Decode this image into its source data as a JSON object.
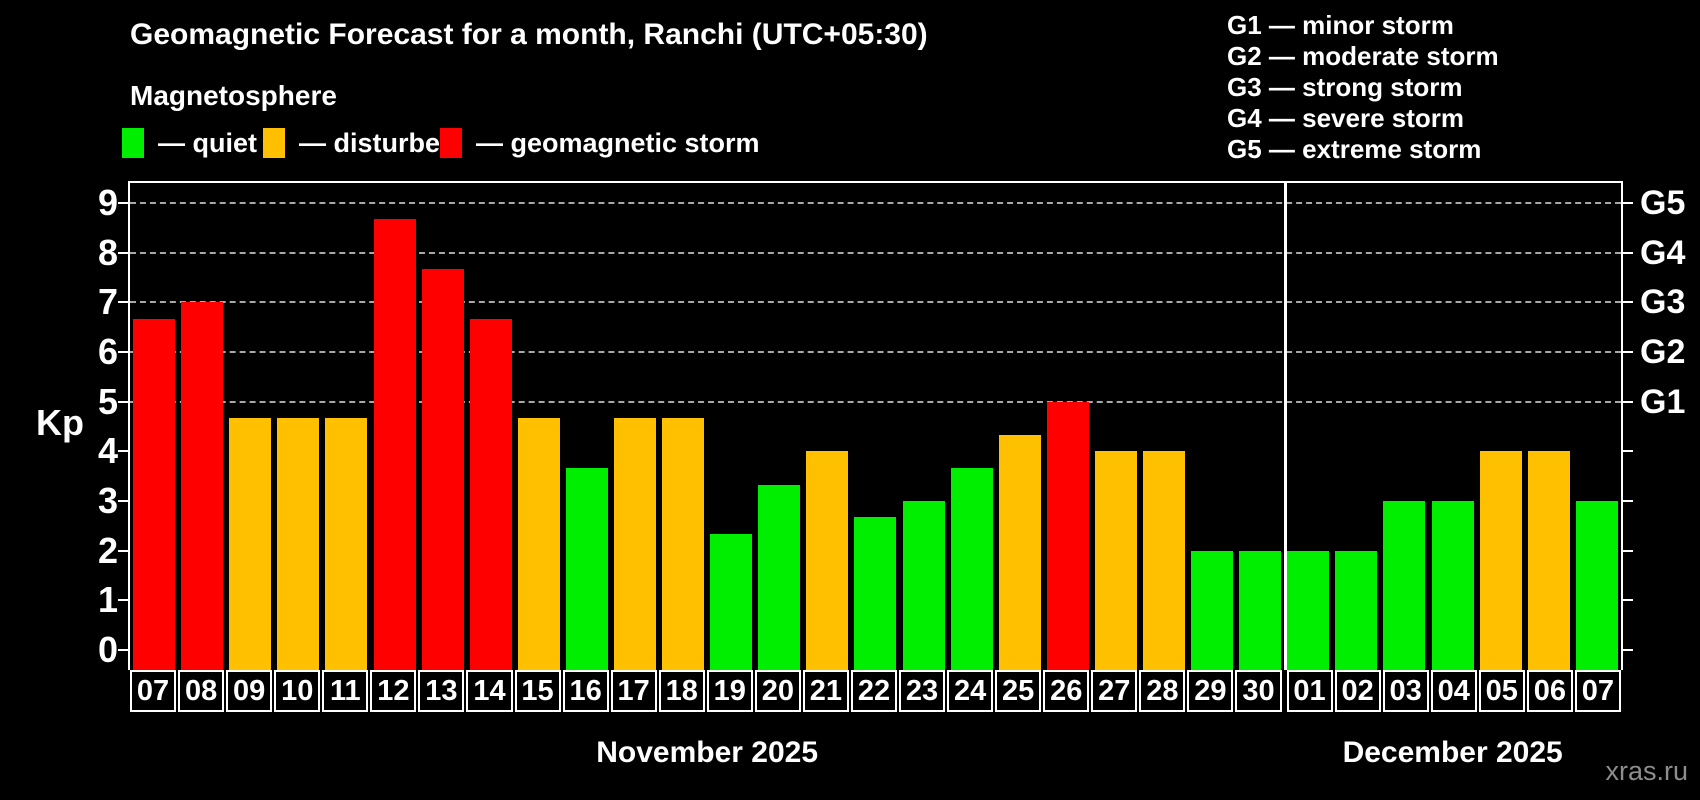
{
  "header": {
    "title": "Geomagnetic Forecast for a month, Ranchi (UTC+05:30)",
    "subtitle": "Magnetosphere",
    "legend": [
      {
        "key": "quiet",
        "label": "— quiet",
        "color": "#00ee00"
      },
      {
        "key": "disturbed",
        "label": "— disturbed",
        "color": "#ffc000"
      },
      {
        "key": "storm",
        "label": "— geomagnetic storm",
        "color": "#ff0000"
      }
    ],
    "storm_scale_legend": [
      "G1 — minor storm",
      "G2 — moderate storm",
      "G3 — strong storm",
      "G4 — severe storm",
      "G5 — extreme storm"
    ]
  },
  "chart_data": {
    "type": "bar",
    "ylabel": "Kp",
    "ylim": [
      -0.4,
      9.4
    ],
    "y_ticks": [
      0,
      1,
      2,
      3,
      4,
      5,
      6,
      7,
      8,
      9
    ],
    "gridlines": [
      5,
      6,
      7,
      8,
      9
    ],
    "grid_style": "dashed",
    "legend_position": "top",
    "right_axis_labels": [
      {
        "value": 5,
        "label": "G1"
      },
      {
        "value": 6,
        "label": "G2"
      },
      {
        "value": 7,
        "label": "G3"
      },
      {
        "value": 8,
        "label": "G4"
      },
      {
        "value": 9,
        "label": "G5"
      }
    ],
    "categories": [
      "07",
      "08",
      "09",
      "10",
      "11",
      "12",
      "13",
      "14",
      "15",
      "16",
      "17",
      "18",
      "19",
      "20",
      "21",
      "22",
      "23",
      "24",
      "25",
      "26",
      "27",
      "28",
      "29",
      "30",
      "01",
      "02",
      "03",
      "04",
      "05",
      "06",
      "07"
    ],
    "values": [
      6.67,
      7.0,
      4.67,
      4.67,
      4.67,
      8.67,
      7.67,
      6.67,
      4.67,
      3.67,
      4.67,
      4.67,
      2.33,
      3.33,
      4.0,
      2.67,
      3.0,
      3.67,
      4.33,
      5.0,
      4.0,
      4.0,
      2.0,
      2.0,
      2.0,
      2.0,
      3.0,
      3.0,
      4.0,
      4.0,
      3.0
    ],
    "conditions": [
      "storm",
      "storm",
      "disturbed",
      "disturbed",
      "disturbed",
      "storm",
      "storm",
      "storm",
      "disturbed",
      "quiet",
      "disturbed",
      "disturbed",
      "quiet",
      "quiet",
      "disturbed",
      "quiet",
      "quiet",
      "quiet",
      "disturbed",
      "storm",
      "disturbed",
      "disturbed",
      "quiet",
      "quiet",
      "quiet",
      "quiet",
      "quiet",
      "quiet",
      "disturbed",
      "disturbed",
      "quiet"
    ],
    "colors": {
      "quiet": "#00ee00",
      "disturbed": "#ffc000",
      "storm": "#ff0000"
    },
    "months": [
      {
        "label": "November 2025",
        "days": 24
      },
      {
        "label": "December 2025",
        "days": 7
      }
    ]
  },
  "watermark": "xras.ru"
}
